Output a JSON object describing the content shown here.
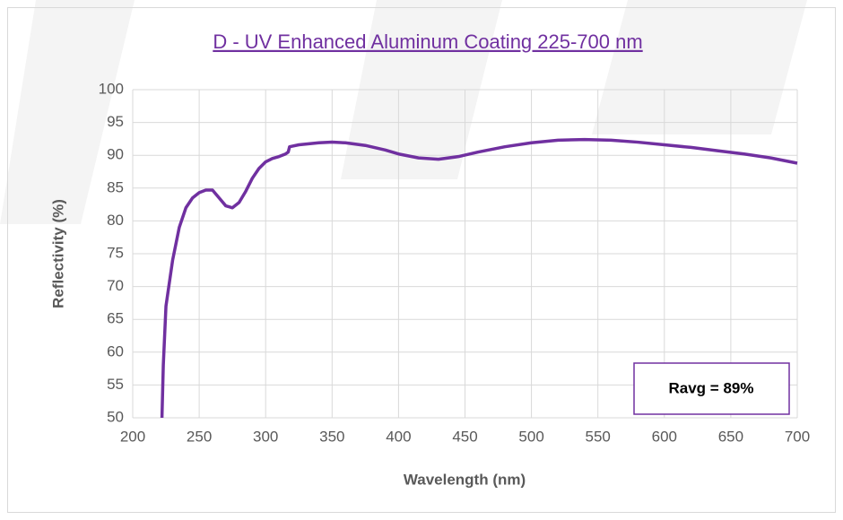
{
  "chart_data": {
    "type": "line",
    "title": "D - UV Enhanced Aluminum Coating 225-700 nm",
    "xlabel": "Wavelength (nm)",
    "ylabel": "Reflectivity (%)",
    "annotation": "Ravg = 89%",
    "x": [
      222,
      223,
      225,
      230,
      235,
      240,
      245,
      250,
      255,
      260,
      265,
      270,
      275,
      280,
      285,
      290,
      295,
      300,
      305,
      310,
      315,
      317,
      318,
      325,
      340,
      350,
      360,
      375,
      390,
      400,
      415,
      430,
      445,
      460,
      480,
      500,
      520,
      540,
      560,
      580,
      600,
      620,
      640,
      660,
      680,
      700
    ],
    "series": [
      {
        "name": "Reflectivity",
        "color": "#7030a0",
        "values": [
          50,
          58,
          67,
          74,
          79,
          82,
          83.5,
          84.3,
          84.7,
          84.7,
          83.5,
          82.3,
          82,
          82.8,
          84.5,
          86.5,
          88,
          89,
          89.5,
          89.8,
          90.2,
          90.5,
          91.3,
          91.6,
          91.9,
          92,
          91.9,
          91.5,
          90.8,
          90.2,
          89.6,
          89.4,
          89.8,
          90.5,
          91.3,
          91.9,
          92.3,
          92.4,
          92.3,
          92,
          91.6,
          91.2,
          90.7,
          90.2,
          89.6,
          88.8
        ]
      }
    ],
    "xlim": [
      200,
      700
    ],
    "xticks": [
      200,
      250,
      300,
      350,
      400,
      450,
      500,
      550,
      600,
      650,
      700
    ],
    "ylim": [
      50,
      100
    ],
    "yticks": [
      50,
      55,
      60,
      65,
      70,
      75,
      80,
      85,
      90,
      95,
      100
    ],
    "grid": true
  }
}
